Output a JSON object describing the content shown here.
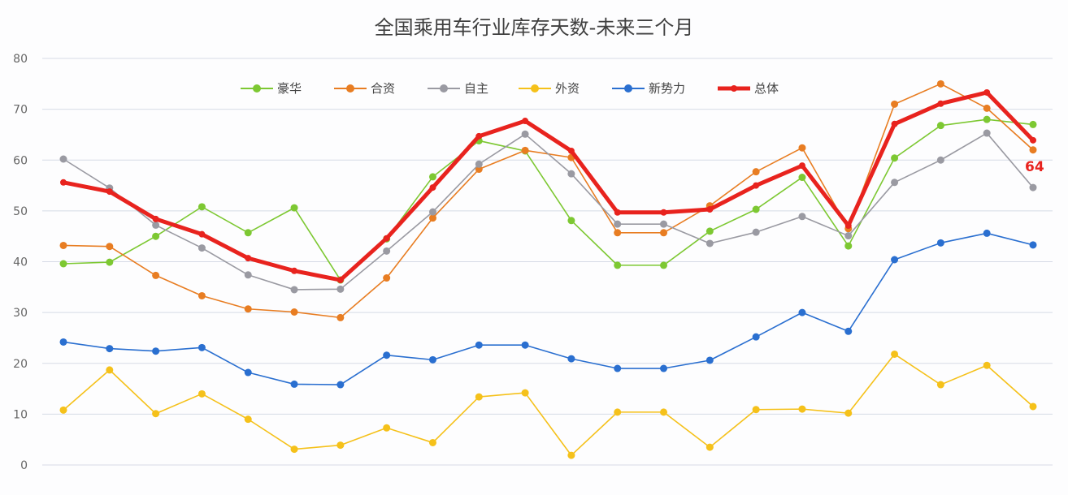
{
  "chart_data": {
    "type": "line",
    "title": "全国乘用车行业库存天数-未来三个月",
    "xlabel": "",
    "ylabel": "",
    "ylim": [
      0,
      80
    ],
    "yticks": [
      0,
      10,
      20,
      30,
      40,
      50,
      60,
      70,
      80
    ],
    "grid": true,
    "legend_position": "top-center",
    "series": [
      {
        "name": "豪华",
        "color": "#7dc832",
        "values": [
          39.6,
          39.9,
          45,
          50.8,
          45.7,
          50.6,
          36.4,
          44.5,
          56.7,
          63.8,
          61.8,
          48.1,
          39.3,
          39.3,
          46,
          50.3,
          56.6,
          43.1,
          60.4,
          66.8,
          68,
          67
        ]
      },
      {
        "name": "合资",
        "color": "#e87d22",
        "values": [
          43.2,
          43.0,
          37.3,
          33.3,
          30.7,
          30.1,
          29.0,
          36.8,
          48.6,
          58.2,
          61.9,
          60.5,
          45.7,
          45.7,
          51.0,
          57.7,
          62.4,
          46.5,
          71.0,
          75.0,
          70.2,
          62.0
        ]
      },
      {
        "name": "自主",
        "color": "#9a9aa2",
        "values": [
          60.2,
          54.5,
          47.2,
          42.7,
          37.4,
          34.5,
          34.6,
          42.1,
          49.8,
          59.2,
          65.1,
          57.3,
          47.4,
          47.4,
          43.6,
          45.8,
          48.9,
          45.1,
          55.6,
          60.0,
          65.3,
          54.6
        ]
      },
      {
        "name": "外资",
        "color": "#f5c11a",
        "values": [
          10.8,
          18.7,
          10.1,
          14.0,
          9.0,
          3.1,
          3.9,
          7.3,
          4.4,
          13.4,
          14.2,
          1.9,
          10.4,
          10.4,
          3.5,
          10.9,
          11.0,
          10.2,
          21.8,
          15.8,
          19.6,
          11.5
        ]
      },
      {
        "name": "新势力",
        "color": "#2a6fd0",
        "values": [
          24.2,
          22.9,
          22.4,
          23.1,
          18.2,
          15.9,
          15.8,
          21.6,
          20.7,
          23.6,
          23.6,
          20.9,
          19.0,
          19.0,
          20.6,
          25.2,
          30.0,
          26.3,
          40.4,
          43.7,
          45.6,
          43.3
        ]
      },
      {
        "name": "总体",
        "color": "#e8231e",
        "values": [
          55.6,
          53.8,
          48.4,
          45.4,
          40.7,
          38.2,
          36.4,
          44.6,
          54.6,
          64.7,
          67.7,
          61.8,
          49.7,
          49.7,
          50.3,
          55.0,
          58.9,
          47.1,
          67.1,
          71.1,
          73.3,
          63.9
        ]
      }
    ],
    "annotations": [
      {
        "series": "总体",
        "point": "last",
        "text": "64"
      }
    ]
  }
}
